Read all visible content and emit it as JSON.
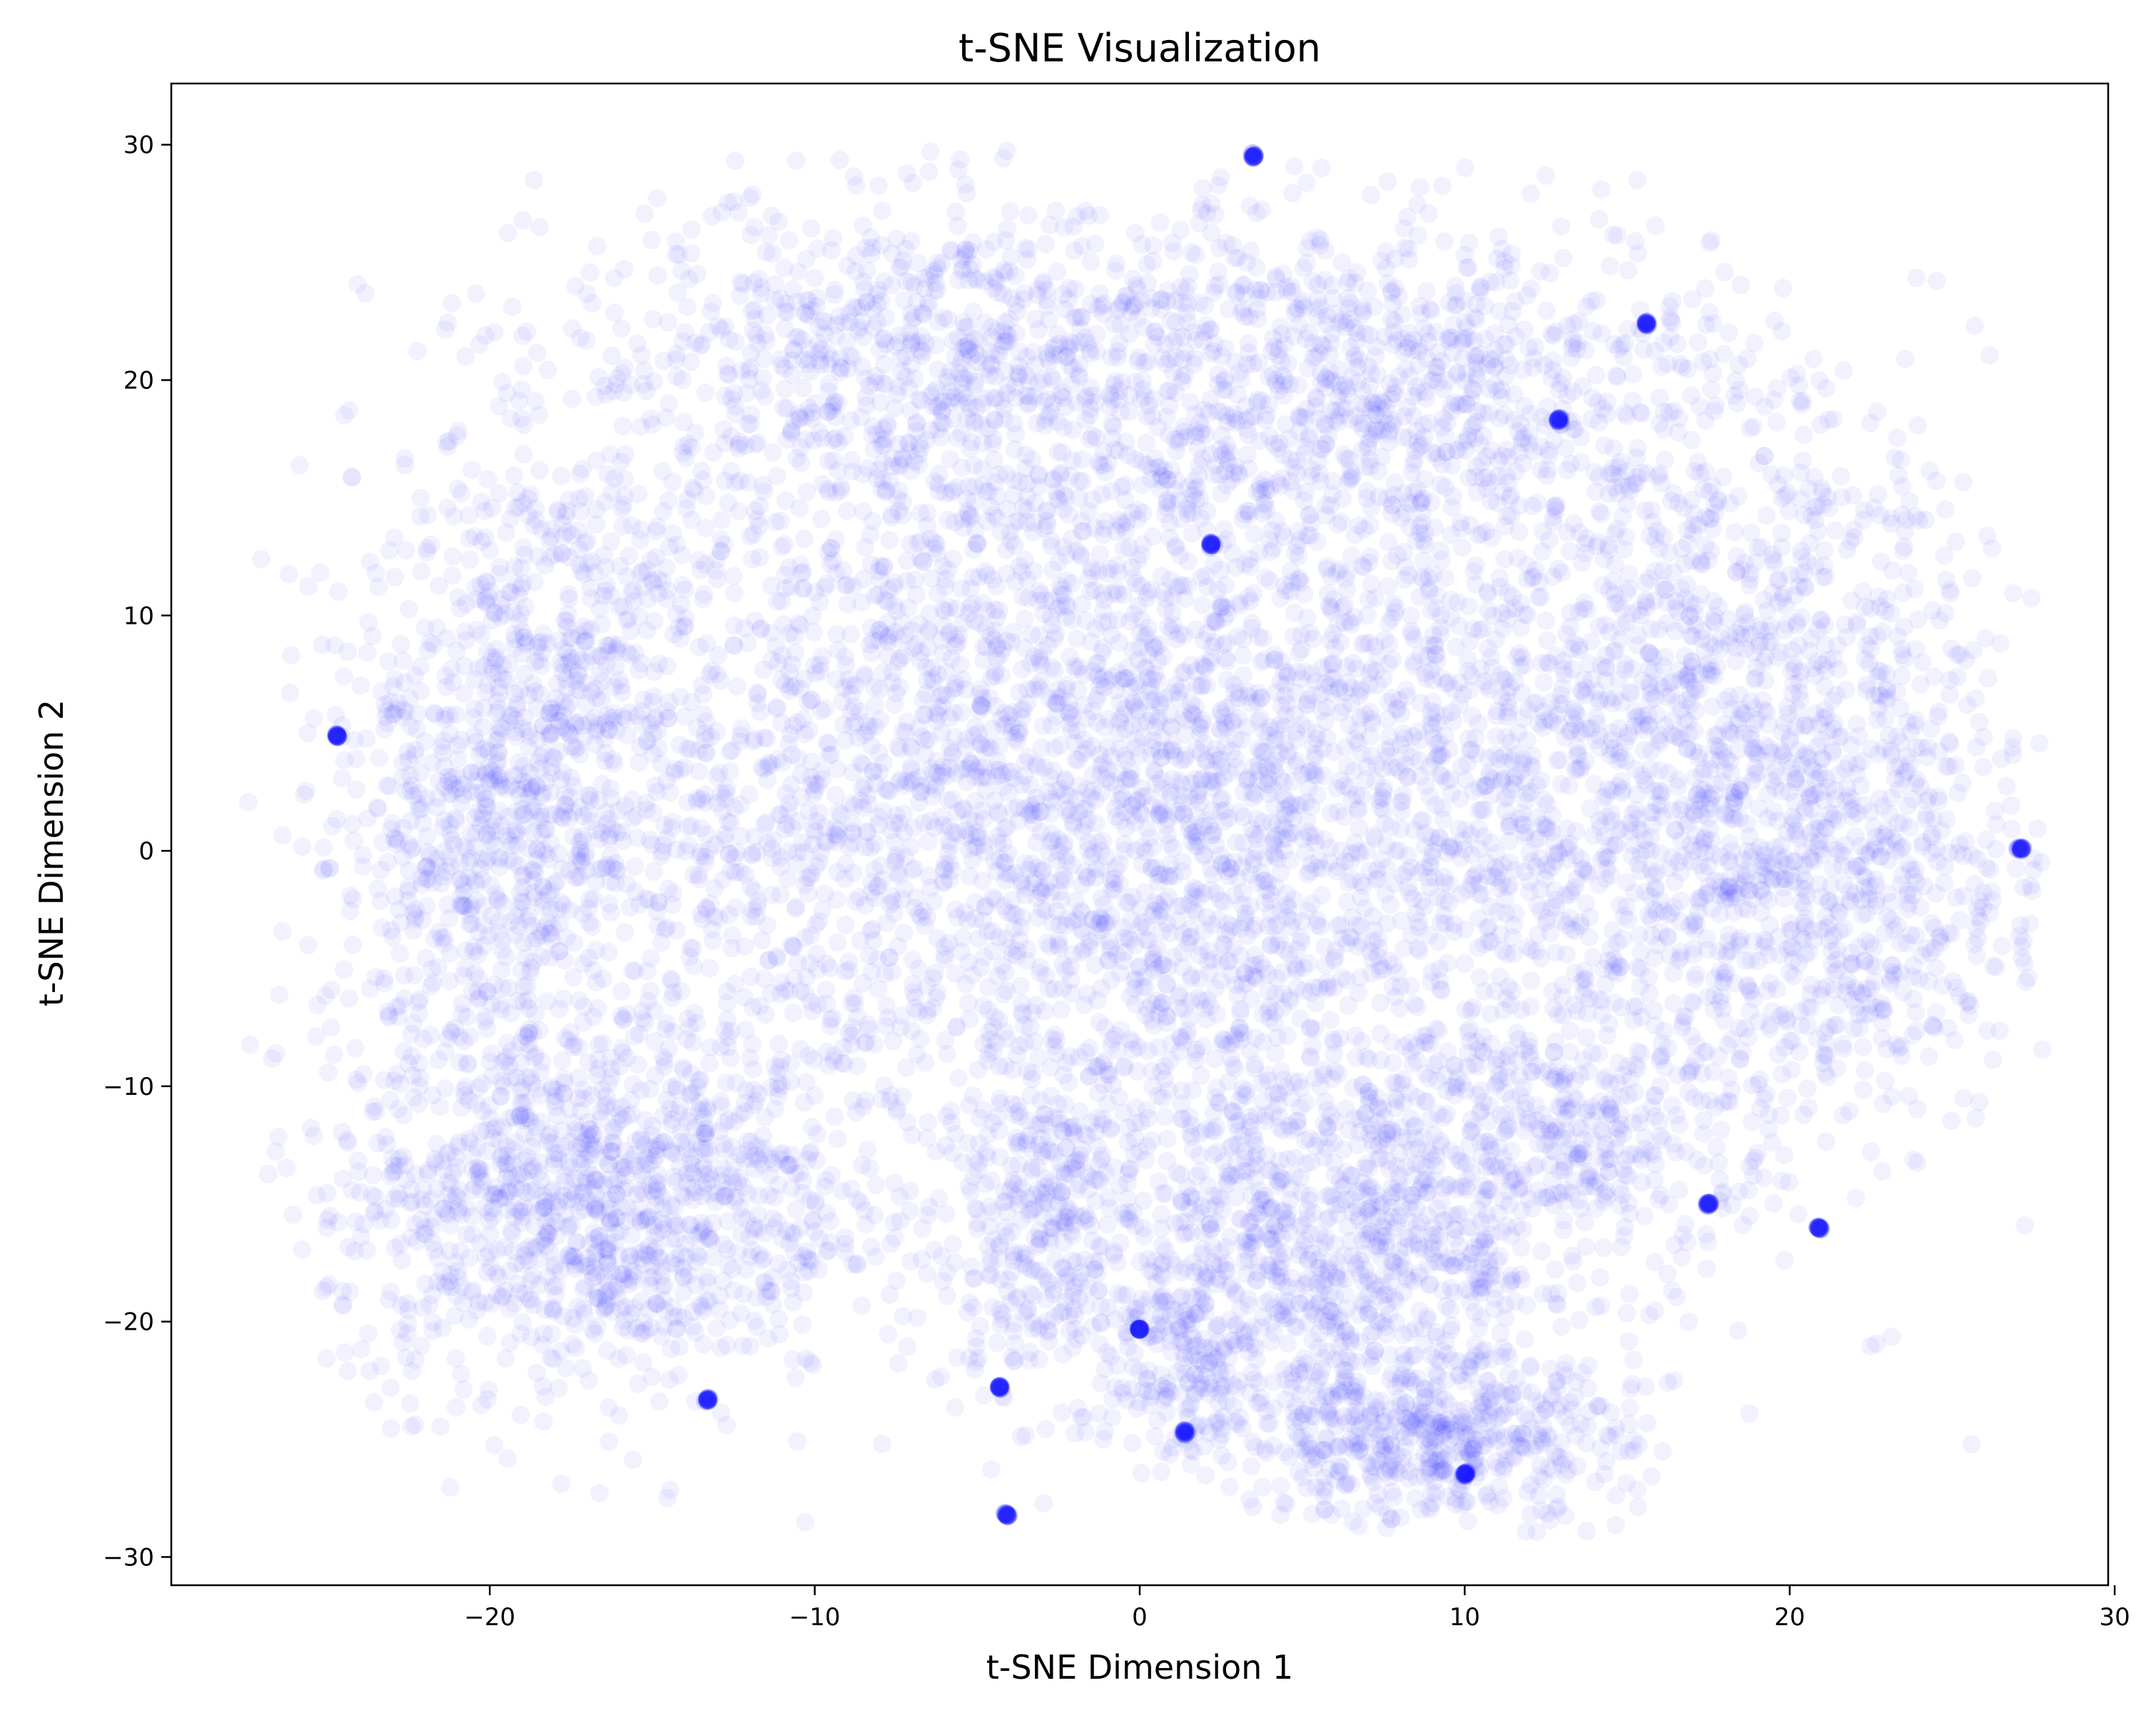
{
  "chart_data": {
    "type": "scatter",
    "title": "t-SNE Visualization",
    "xlabel": "t-SNE Dimension 1",
    "ylabel": "t-SNE Dimension 2",
    "xlim": [
      -29.8,
      29.8
    ],
    "ylim": [
      -31.2,
      32.6
    ],
    "xticks": [
      -20,
      -10,
      0,
      10,
      20,
      30
    ],
    "yticks": [
      -30,
      -20,
      -10,
      0,
      10,
      20,
      30
    ],
    "xtick_labels": [
      "−20",
      "−10",
      "0",
      "10",
      "20",
      "30"
    ],
    "ytick_labels": [
      "−30",
      "−20",
      "−10",
      "0",
      "10",
      "20",
      "30"
    ],
    "grid": false,
    "legend": "none",
    "marker_color": "#0000ff",
    "marker_alpha": 0.05,
    "series": [
      {
        "values_description_excluded": true,
        "clusters": [
          {
            "cx": 0,
            "cy": 2,
            "sx": 10,
            "sy": 9,
            "n": 4200
          },
          {
            "cx": -6,
            "cy": 21,
            "sx": 6,
            "sy": 3.5,
            "n": 800
          },
          {
            "cx": 8,
            "cy": 20,
            "sx": 5,
            "sy": 3.5,
            "n": 700
          },
          {
            "cx": 18,
            "cy": 8,
            "sx": 4,
            "sy": 6,
            "n": 700
          },
          {
            "cx": 21,
            "cy": -2,
            "sx": 3.5,
            "sy": 5,
            "n": 600
          },
          {
            "cx": -17,
            "cy": -15,
            "sx": 4,
            "sy": 4,
            "n": 1100
          },
          {
            "cx": 6,
            "cy": -17,
            "sx": 4,
            "sy": 4,
            "n": 900
          },
          {
            "cx": 9,
            "cy": -25,
            "sx": 3,
            "sy": 1.8,
            "n": 500
          },
          {
            "cx": -18,
            "cy": 8,
            "sx": 3,
            "sy": 5,
            "n": 500
          },
          {
            "cx": -20,
            "cy": -1,
            "sx": 2.5,
            "sy": 4,
            "n": 400
          },
          {
            "cx": -3,
            "cy": -16,
            "sx": 1.5,
            "sy": 3,
            "n": 250
          },
          {
            "cx": 1,
            "cy": -22,
            "sx": 1.5,
            "sy": 2,
            "n": 150
          },
          {
            "cx": 14,
            "cy": -12,
            "sx": 3,
            "sy": 3,
            "n": 300
          }
        ],
        "highlight_points": [
          {
            "x": -4.1,
            "y": -28.2
          },
          {
            "x": 20.9,
            "y": -16.0
          },
          {
            "x": 12.9,
            "y": 18.3
          },
          {
            "x": -4.3,
            "y": -22.8
          },
          {
            "x": 1.4,
            "y": -24.7
          },
          {
            "x": 10.0,
            "y": -26.5
          },
          {
            "x": 3.5,
            "y": 29.5
          },
          {
            "x": 0.0,
            "y": -20.3
          },
          {
            "x": -24.7,
            "y": 4.9
          },
          {
            "x": 27.1,
            "y": 0.1
          },
          {
            "x": 15.6,
            "y": 22.4
          },
          {
            "x": 2.2,
            "y": 13.0
          },
          {
            "x": -13.3,
            "y": -23.3
          },
          {
            "x": 17.5,
            "y": -15.0
          }
        ]
      }
    ]
  }
}
